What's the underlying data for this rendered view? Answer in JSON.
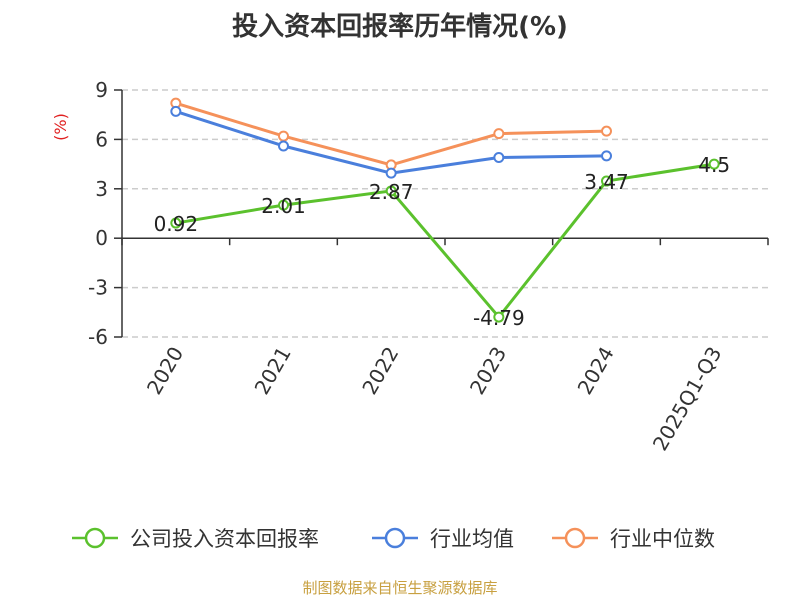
{
  "title": "投入资本回报率历年情况(%)",
  "source_note": "制图数据来自恒生聚源数据库",
  "chart_data": {
    "type": "line",
    "ylabel": "(%)",
    "categories": [
      "2020",
      "2021",
      "2022",
      "2023",
      "2024",
      "2025Q1-Q3"
    ],
    "ylim": [
      -6,
      9
    ],
    "yticks": [
      9,
      6,
      3,
      0,
      -3,
      -6
    ],
    "grid": true,
    "legend_position": "bottom",
    "series": [
      {
        "name": "公司投入资本回报率",
        "color": "#5bc12d",
        "values": [
          0.92,
          2.01,
          2.87,
          -4.79,
          3.47,
          4.5
        ],
        "labels": [
          "0.92",
          "2.01",
          "2.87",
          "-4.79",
          "3.47",
          "4.5"
        ]
      },
      {
        "name": "行业均值",
        "color": "#4a7fdc",
        "values": [
          7.7,
          5.6,
          3.95,
          4.9,
          5.0,
          null
        ]
      },
      {
        "name": "行业中位数",
        "color": "#f5915a",
        "values": [
          8.2,
          6.2,
          4.45,
          6.35,
          6.5,
          null
        ]
      }
    ]
  }
}
